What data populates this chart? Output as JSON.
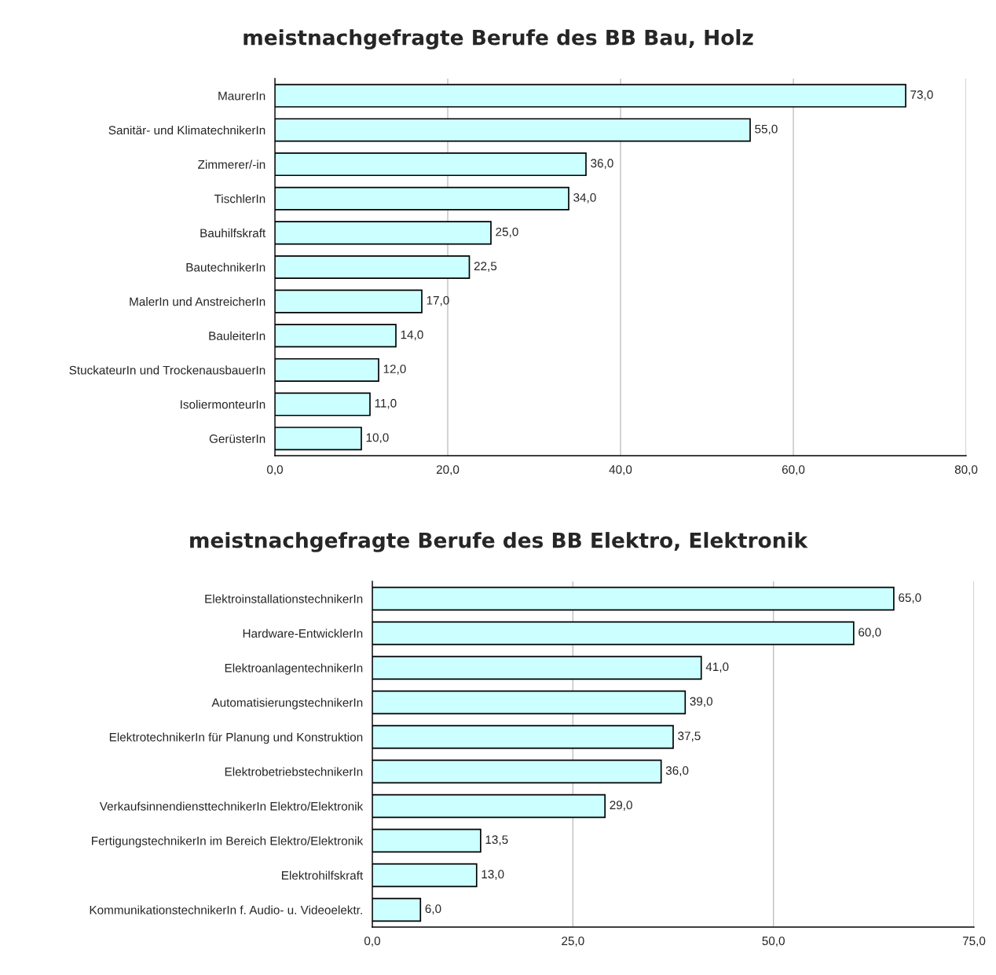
{
  "chart_data": [
    {
      "type": "bar",
      "orientation": "horizontal",
      "title": "meistnachgefragte Berufe des BB Bau, Holz",
      "categories": [
        "MaurerIn",
        "Sanitär- und KlimatechnikerIn",
        "Zimmerer/-in",
        "TischlerIn",
        "Bauhilfskraft",
        "BautechnikerIn",
        "MalerIn und AnstreicherIn",
        "BauleiterIn",
        "StuckateurIn und TrockenausbauerIn",
        "IsoliermonteurIn",
        "GerüsterIn"
      ],
      "values": [
        73.0,
        55.0,
        36.0,
        34.0,
        25.0,
        22.5,
        17.0,
        14.0,
        12.0,
        11.0,
        10.0
      ],
      "value_labels": [
        "73,0",
        "55,0",
        "36,0",
        "34,0",
        "25,0",
        "22,5",
        "17,0",
        "14,0",
        "12,0",
        "11,0",
        "10,0"
      ],
      "color": "#ccffff",
      "grid": "x",
      "legend": false,
      "xlim": [
        0,
        80
      ],
      "xticks": [
        {
          "value": 0,
          "label": "0,0"
        },
        {
          "value": 20,
          "label": "20,0"
        },
        {
          "value": 40,
          "label": "40,0"
        },
        {
          "value": 60,
          "label": "60,0"
        },
        {
          "value": 80,
          "label": "80,0"
        }
      ]
    },
    {
      "type": "bar",
      "orientation": "horizontal",
      "title": "meistnachgefragte Berufe des BB Elektro, Elektronik",
      "categories": [
        "ElektroinstallationstechnikerIn",
        "Hardware-EntwicklerIn",
        "ElektroanlagentechnikerIn",
        "AutomatisierungstechnikerIn",
        "ElektrotechnikerIn für Planung und Konstruktion",
        "ElektrobetriebstechnikerIn",
        "VerkaufsinnendiensttechnikerIn Elektro/Elektronik",
        "FertigungstechnikerIn im Bereich Elektro/Elektronik",
        "Elektrohilfskraft",
        "KommunikationstechnikerIn f. Audio- u. Videoelektr."
      ],
      "values": [
        65.0,
        60.0,
        41.0,
        39.0,
        37.5,
        36.0,
        29.0,
        13.5,
        13.0,
        6.0
      ],
      "value_labels": [
        "65,0",
        "60,0",
        "41,0",
        "39,0",
        "37,5",
        "36,0",
        "29,0",
        "13,5",
        "13,0",
        "6,0"
      ],
      "color": "#ccffff",
      "grid": "x",
      "legend": false,
      "xlim": [
        0,
        75
      ],
      "xticks": [
        {
          "value": 0,
          "label": "0,0"
        },
        {
          "value": 25,
          "label": "25,0"
        },
        {
          "value": 50,
          "label": "50,0"
        },
        {
          "value": 75,
          "label": "75,0"
        }
      ]
    }
  ]
}
